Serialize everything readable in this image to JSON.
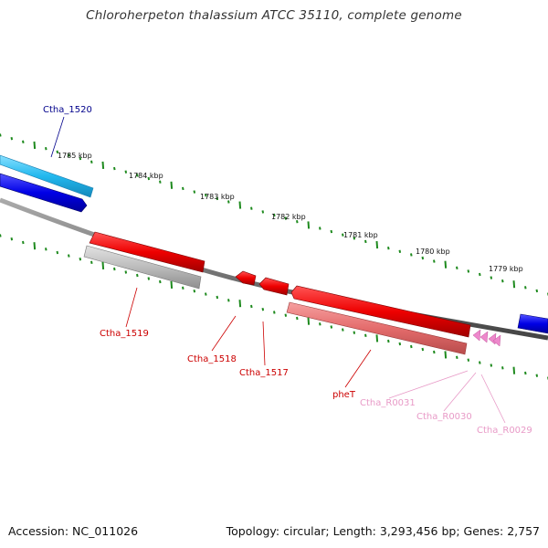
{
  "title": "Chloroherpeton thalassium ATCC 35110, complete genome",
  "footer": {
    "accession": "Accession: NC_011026",
    "summary": "Topology: circular; Length: 3,293,456 bp; Genes: 2,757"
  },
  "ticks": [
    "1785 kbp",
    "1784 kbp",
    "1783 kbp",
    "1782 kbp",
    "1781 kbp",
    "1780 kbp",
    "1779 kbp"
  ],
  "genes": [
    {
      "name": "Ctha_1520",
      "color": "#00008b"
    },
    {
      "name": "Ctha_1519",
      "color": "#cc0000"
    },
    {
      "name": "Ctha_1518",
      "color": "#cc0000"
    },
    {
      "name": "Ctha_1517",
      "color": "#cc0000"
    },
    {
      "name": "pheT",
      "color": "#cc0000"
    },
    {
      "name": "Ctha_R0031",
      "color": "#e89ac7"
    },
    {
      "name": "Ctha_R0030",
      "color": "#e89ac7"
    },
    {
      "name": "Ctha_R0029",
      "color": "#e89ac7"
    }
  ],
  "colors": {
    "backbone": "#7a7a7a",
    "tick": "#1e8a1e",
    "forward_cds": "#0000e0",
    "forward_gene": "#33bbee",
    "reverse_cds": "#ee0000",
    "reverse_gene_shadow": "#e87070",
    "pseudo_gene": "#b8b8b8",
    "trna": "#ee88cc"
  }
}
